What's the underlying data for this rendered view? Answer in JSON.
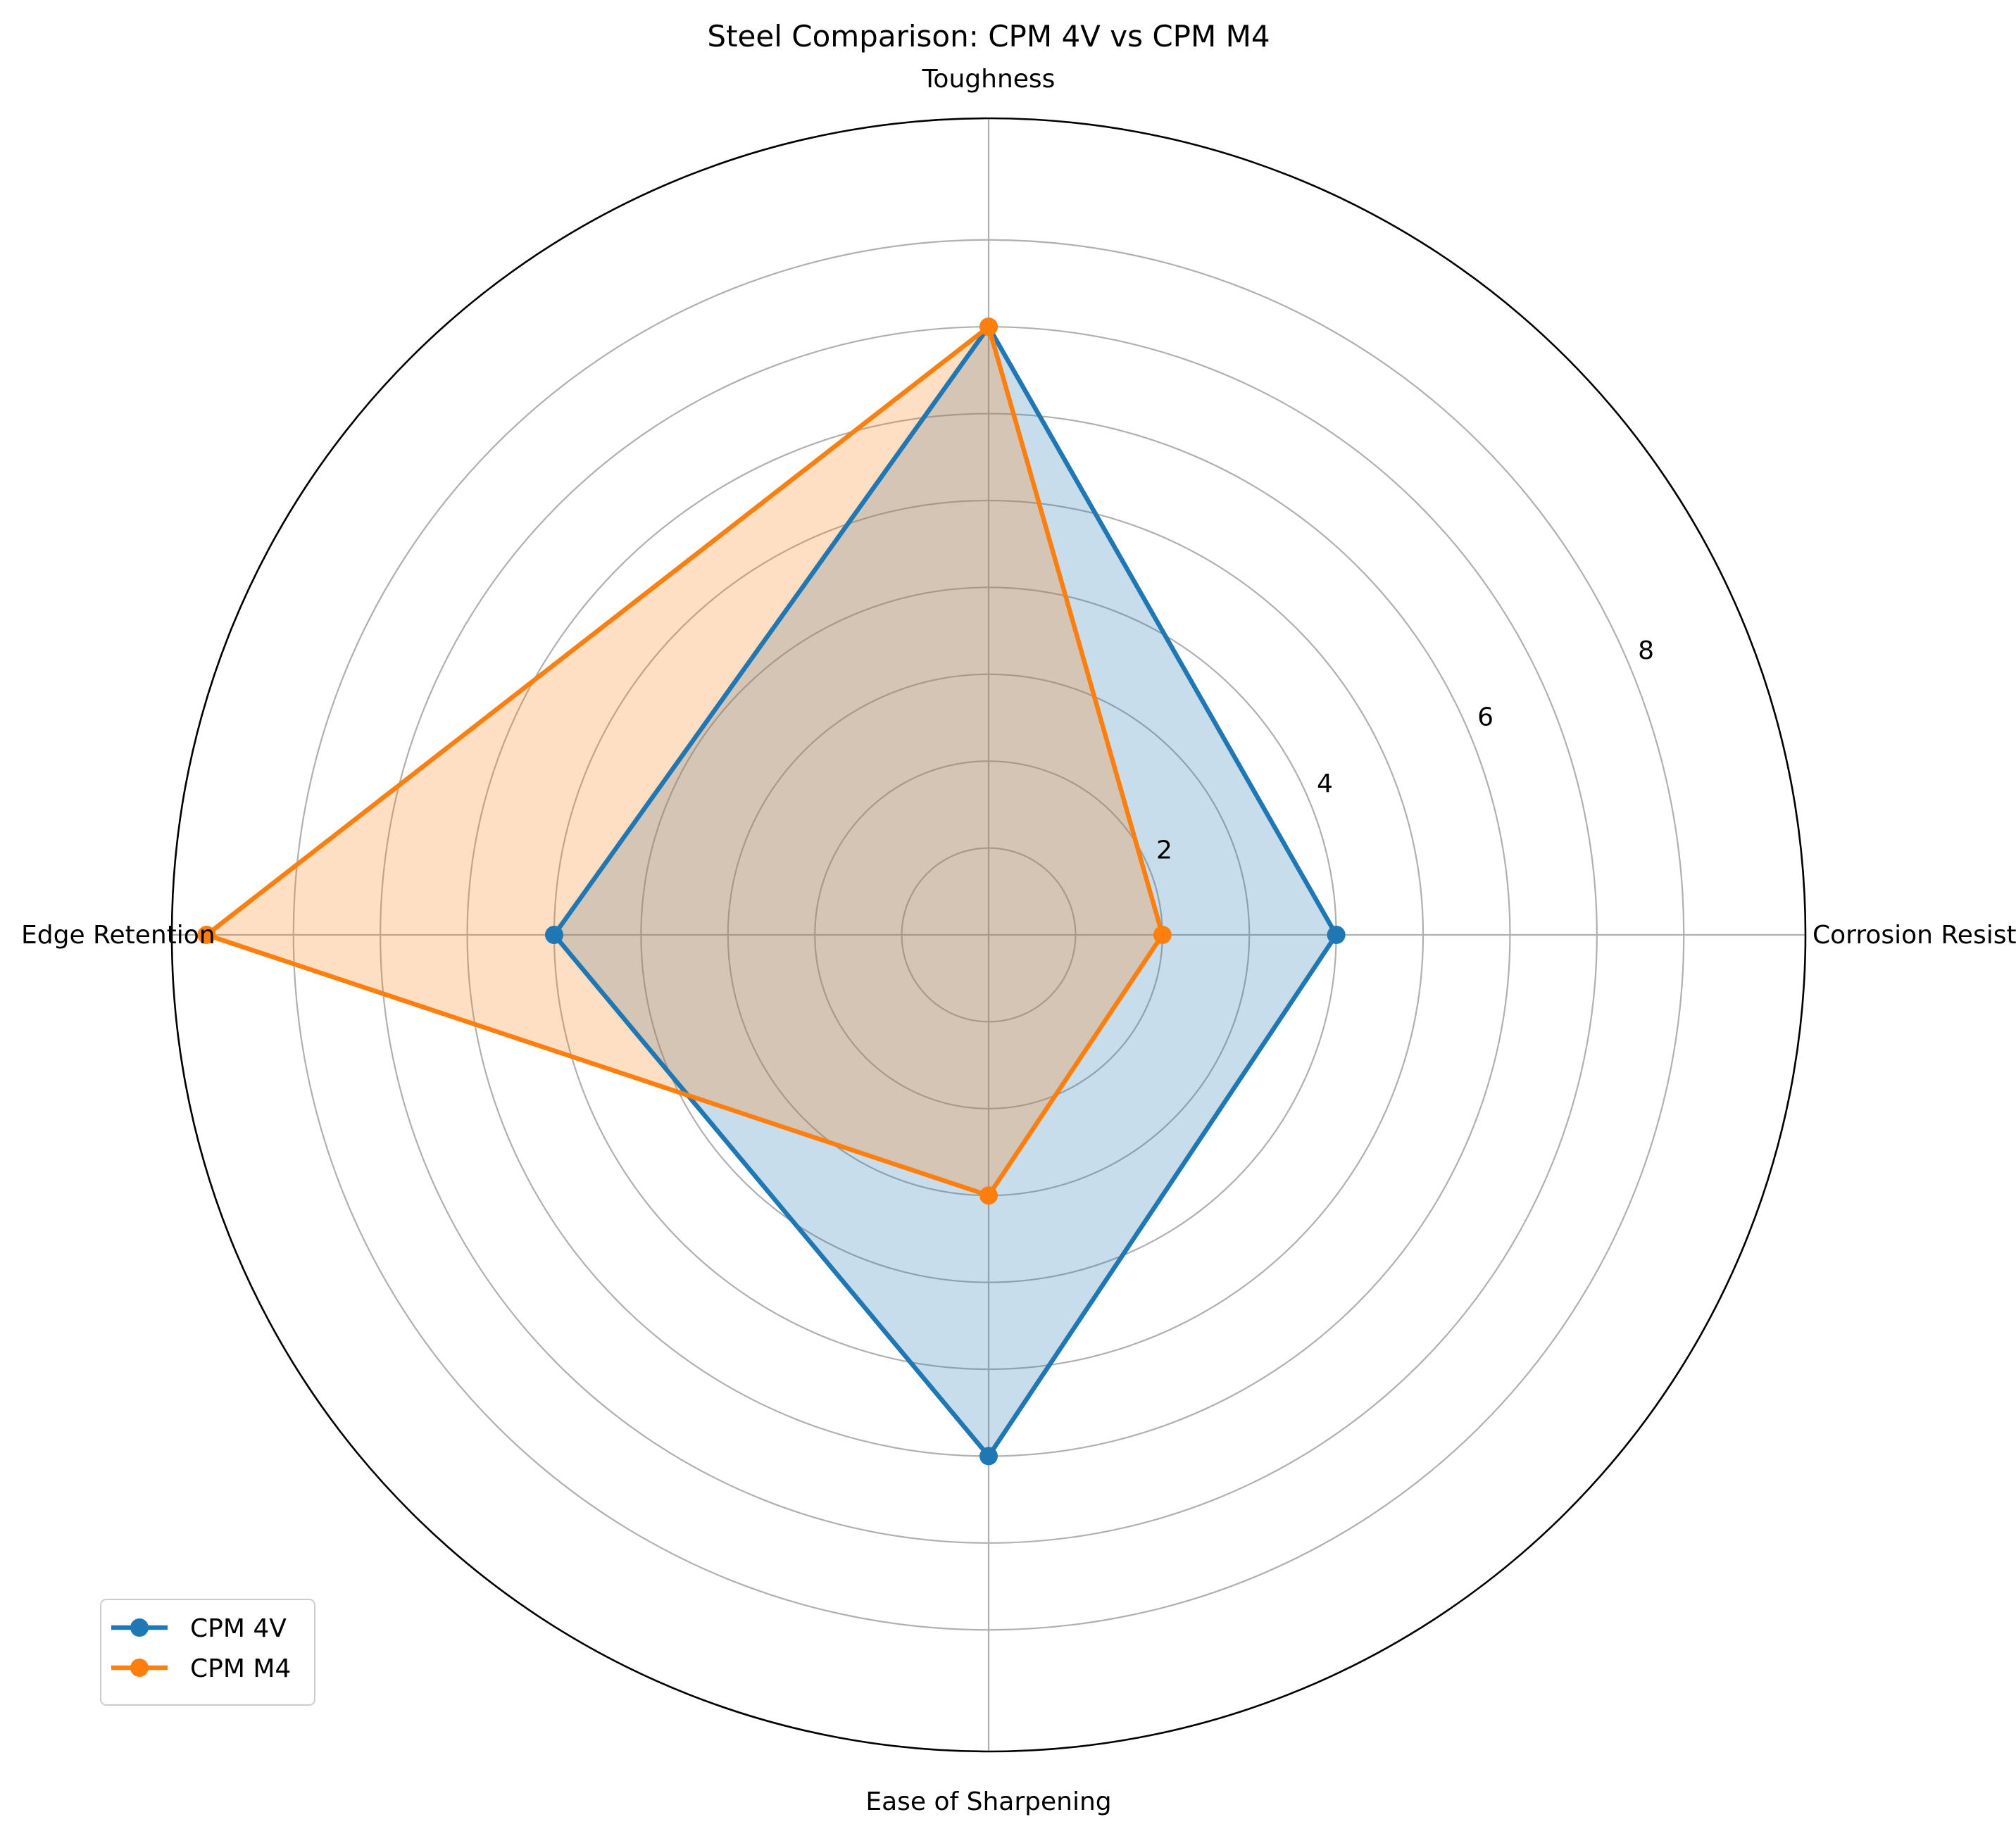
{
  "chart_data": {
    "type": "radar",
    "title": "Steel Comparison: CPM 4V vs CPM M4",
    "categories": [
      "Corrosion Resistance",
      "Toughness",
      "Edge Retention",
      "Ease of Sharpening"
    ],
    "series": [
      {
        "name": "CPM 4V",
        "values": [
          4,
          7,
          5,
          6
        ],
        "color": "#1f77b4",
        "fill": "#1f77b4"
      },
      {
        "name": "CPM M4",
        "values": [
          2,
          7,
          9,
          3
        ],
        "color": "#ff7f0e",
        "fill": "#ff7f0e"
      }
    ],
    "rlim": [
      0,
      9.4
    ],
    "rticks": [
      "2",
      "4",
      "6",
      "8"
    ],
    "grid": true,
    "legend": "lower-left"
  }
}
